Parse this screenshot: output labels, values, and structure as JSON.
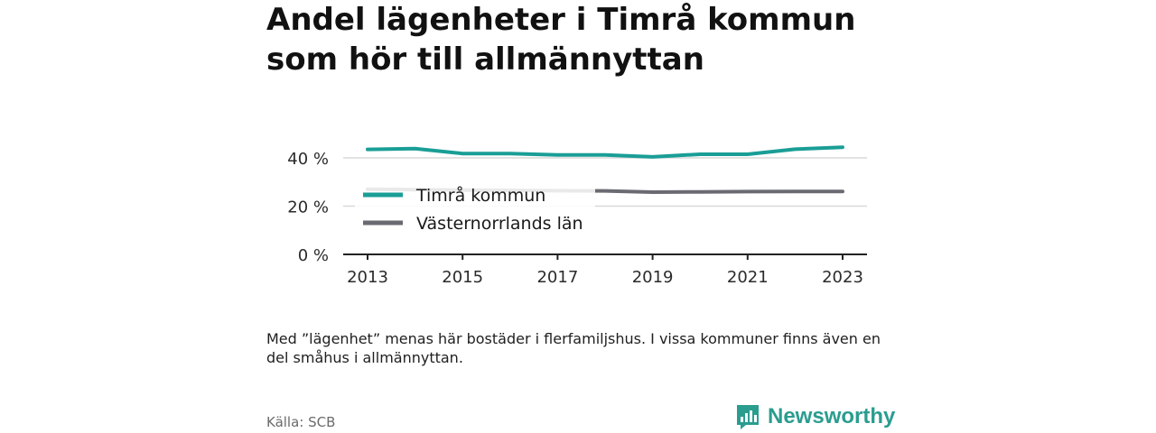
{
  "header": {
    "title_line1": "Andel lägenheter i Timrå kommun",
    "title_line2": "som hör till allmännyttan"
  },
  "chart_data": {
    "type": "line",
    "x": [
      2013,
      2014,
      2015,
      2016,
      2017,
      2018,
      2019,
      2020,
      2021,
      2022,
      2023
    ],
    "x_ticks": [
      "2013",
      "2015",
      "2017",
      "2019",
      "2021",
      "2023"
    ],
    "y_ticks": [
      "0 %",
      "20 %",
      "40 %"
    ],
    "ylim": [
      0,
      50
    ],
    "y_tick_values": [
      0,
      20,
      40
    ],
    "grid": true,
    "legend_position": "inside-left",
    "series": [
      {
        "name": "Timrå kommun",
        "color": "#1a9e96",
        "values": [
          43.5,
          43.8,
          41.8,
          41.8,
          41.2,
          41.2,
          40.4,
          41.5,
          41.5,
          43.6,
          44.4
        ]
      },
      {
        "name": "Västernorrlands län",
        "color": "#6a6a72",
        "values": [
          27.0,
          26.8,
          26.6,
          26.5,
          26.4,
          26.3,
          25.8,
          25.9,
          26.0,
          26.1,
          26.1
        ]
      }
    ]
  },
  "note": "Med ”lägenhet” menas här bostäder i flerfamiljshus. I vissa kommuner finns även en del småhus i allmännyttan.",
  "source": "Källa: SCB",
  "brand": {
    "name": "Newsworthy",
    "icon": "bar-chart-bubble-icon",
    "color": "#2a9d8f"
  }
}
